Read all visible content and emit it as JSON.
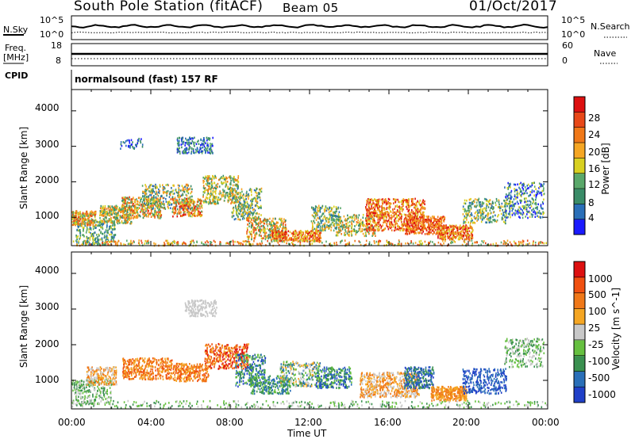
{
  "header": {
    "title": "South Pole Station (fitACF)",
    "beam": "Beam 05",
    "date": "01/Oct/2017"
  },
  "top_panel": {
    "left_label": "N.Sky",
    "left_ticks": [
      "10^5",
      "10^0"
    ],
    "right_label": "N.Search",
    "right_ticks": [
      "10^5",
      "10^0"
    ]
  },
  "freq_panel": {
    "left_label_line1": "Freq.",
    "left_label_line2": "[MHz]",
    "left_ticks": [
      "18",
      "8"
    ],
    "right_label": "Nave",
    "right_ticks": [
      "60",
      "0"
    ]
  },
  "cpid": {
    "label": "CPID",
    "value": "normalsound (fast) 157 RF"
  },
  "colors": {
    "power": [
      "#1a1aff",
      "#2a6fb8",
      "#3a8c68",
      "#5aa86a",
      "#d8d020",
      "#f5a623",
      "#f07818",
      "#e84818",
      "#dd1010"
    ],
    "velocity": [
      "#dd1010",
      "#f05010",
      "#f07818",
      "#f5a623",
      "#c8c8c8",
      "#66c040",
      "#3a9050",
      "#2a6fb8",
      "#2040c8"
    ]
  },
  "chart_data": [
    {
      "type": "heatmap",
      "name": "Power",
      "xlabel": "",
      "ylabel": "Slant Range [km]",
      "x_ticks": [
        "00:00",
        "04:00",
        "08:00",
        "12:00",
        "16:00",
        "20:00",
        "00:00"
      ],
      "y_ticks": [
        1000,
        2000,
        3000,
        4000
      ],
      "ylim": [
        200,
        4600
      ],
      "colorbar": {
        "label": "Power [dB]",
        "ticks": [
          4,
          8,
          12,
          16,
          20,
          24,
          28
        ]
      }
    },
    {
      "type": "heatmap",
      "name": "Velocity",
      "xlabel": "Time UT",
      "ylabel": "Slant Range [km]",
      "x_ticks": [
        "00:00",
        "04:00",
        "08:00",
        "12:00",
        "16:00",
        "20:00",
        "00:00"
      ],
      "y_ticks": [
        1000,
        2000,
        3000,
        4000
      ],
      "ylim": [
        200,
        4600
      ],
      "colorbar": {
        "label": "Velocity [m s^-1]",
        "ticks": [
          1000,
          500,
          100,
          25,
          -25,
          -100,
          -500,
          -1000
        ]
      }
    }
  ]
}
